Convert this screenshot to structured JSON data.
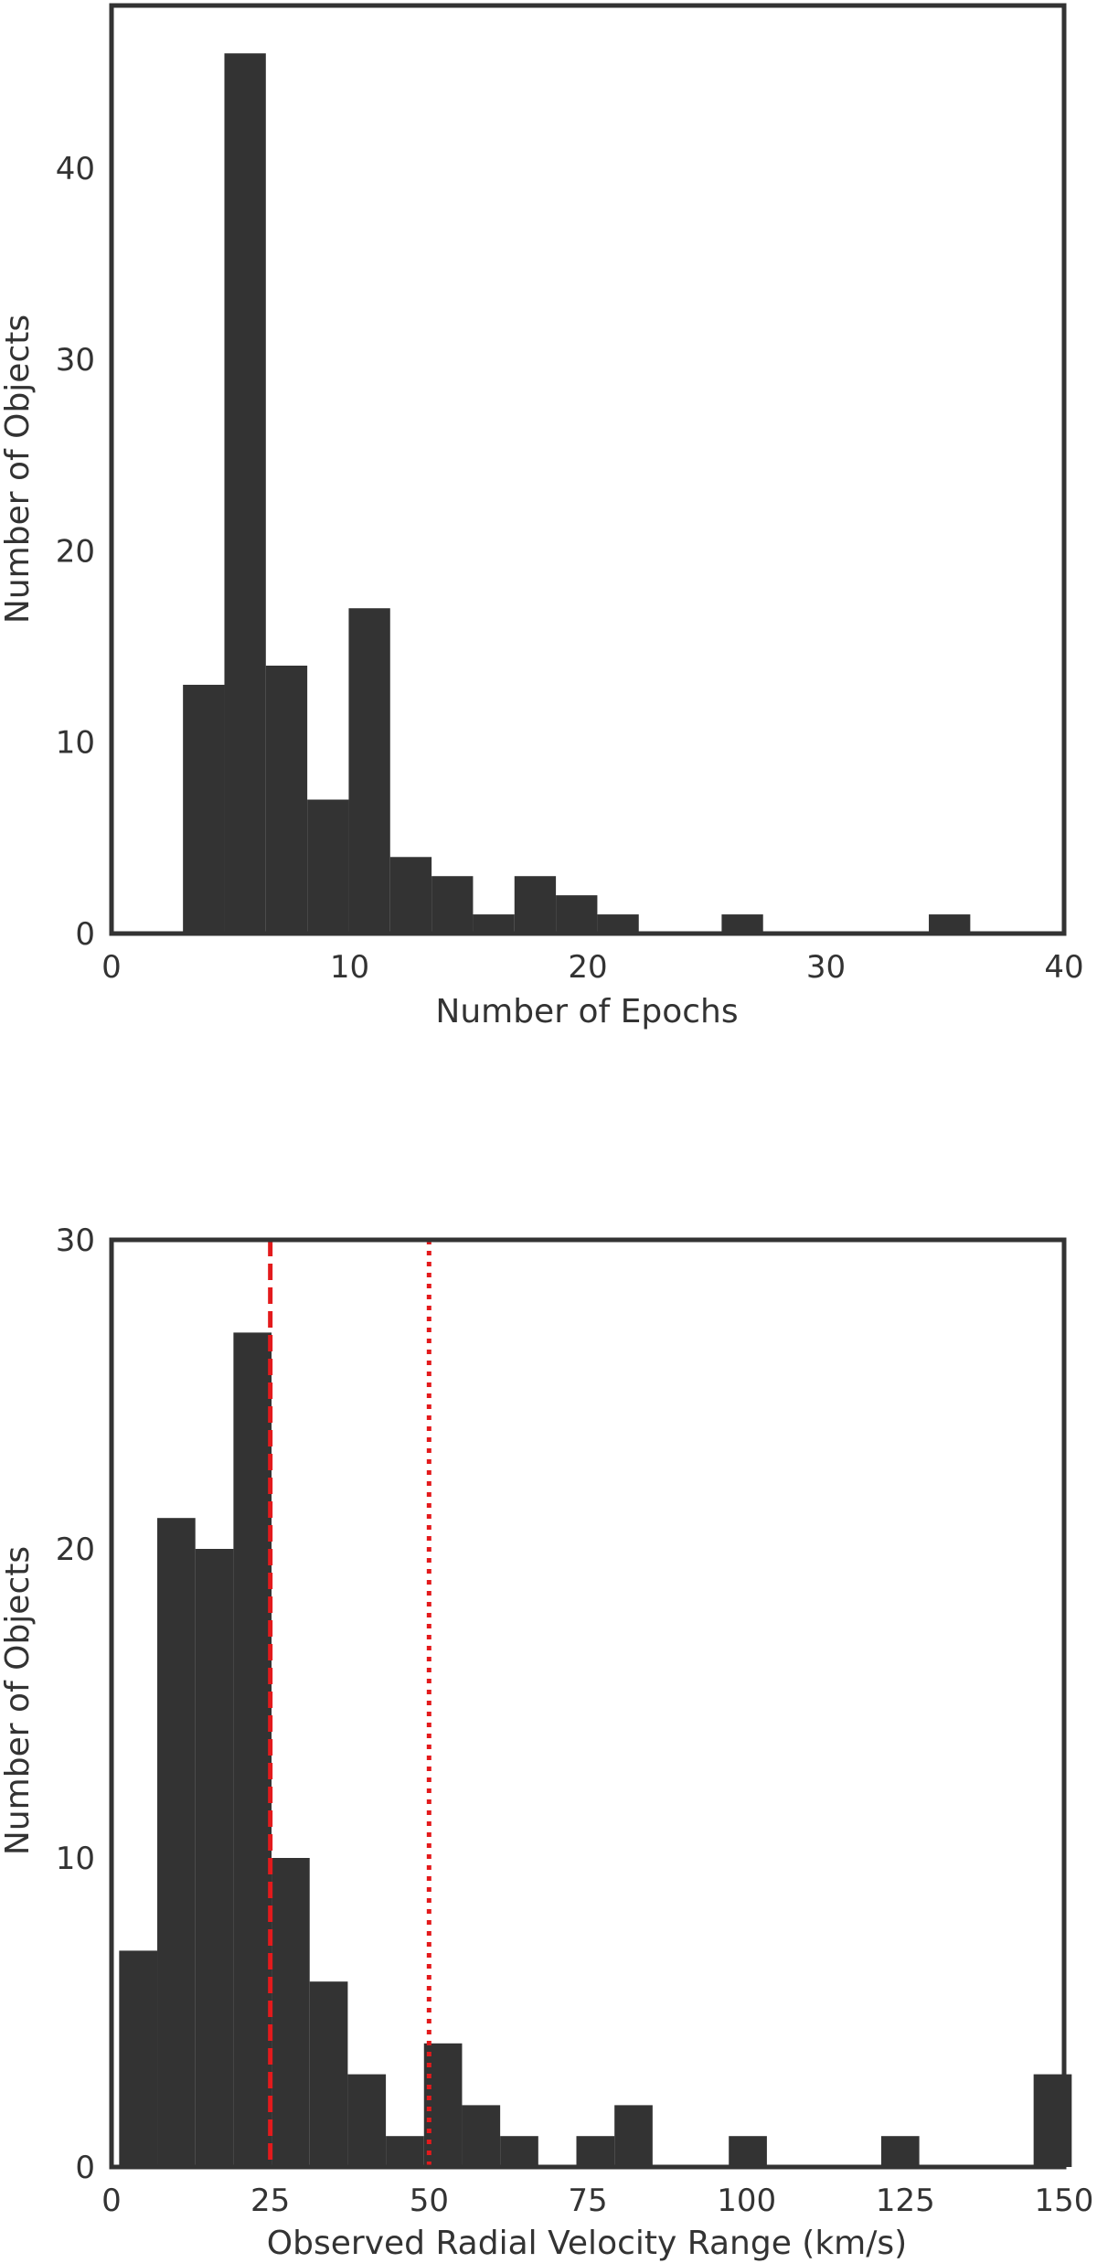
{
  "chart_data": [
    {
      "type": "bar",
      "xlabel": "Number of Epochs",
      "ylabel": "Number of Objects",
      "xlim": [
        0,
        40
      ],
      "ylim": [
        0,
        48.5
      ],
      "xticks": [
        0,
        10,
        20,
        30,
        40
      ],
      "yticks": [
        0,
        10,
        20,
        30,
        40
      ],
      "bin_edges": [
        3.0,
        4.74,
        6.48,
        8.22,
        9.96,
        11.7,
        13.44,
        15.18,
        16.92,
        18.66,
        20.4,
        22.14,
        23.88,
        25.62,
        27.36,
        29.1,
        30.84,
        32.58,
        34.32,
        36.06
      ],
      "values": [
        13,
        46,
        14,
        7,
        17,
        4,
        3,
        1,
        3,
        2,
        1,
        0,
        0,
        1,
        0,
        0,
        0,
        0,
        1
      ],
      "bar_color": "#333333",
      "grid": false
    },
    {
      "type": "bar",
      "xlabel": "Observed Radial Velocity Range (km/s)",
      "ylabel": "Number of Objects",
      "xlim": [
        0,
        150
      ],
      "ylim": [
        0,
        30
      ],
      "xticks": [
        0,
        25,
        50,
        75,
        100,
        125,
        150
      ],
      "yticks": [
        0,
        10,
        20,
        30
      ],
      "bin_edges": [
        1.2,
        7.2,
        13.2,
        19.2,
        25.2,
        31.2,
        37.2,
        43.2,
        49.2,
        55.2,
        61.2,
        67.2,
        73.2,
        79.2,
        85.2,
        91.2,
        97.2,
        103.2,
        109.2,
        115.2,
        121.2,
        127.2,
        133.2,
        139.2,
        145.2,
        151.2
      ],
      "values": [
        7,
        21,
        20,
        27,
        10,
        6,
        3,
        1,
        4,
        2,
        1,
        0,
        1,
        2,
        0,
        0,
        1,
        0,
        0,
        0,
        1,
        0,
        0,
        0,
        3
      ],
      "bar_color": "#333333",
      "grid": false,
      "reference_lines": [
        {
          "x": 25,
          "style": "dashed",
          "color": "#e31a1c"
        },
        {
          "x": 50,
          "style": "dotted",
          "color": "#e31a1c"
        }
      ]
    }
  ]
}
